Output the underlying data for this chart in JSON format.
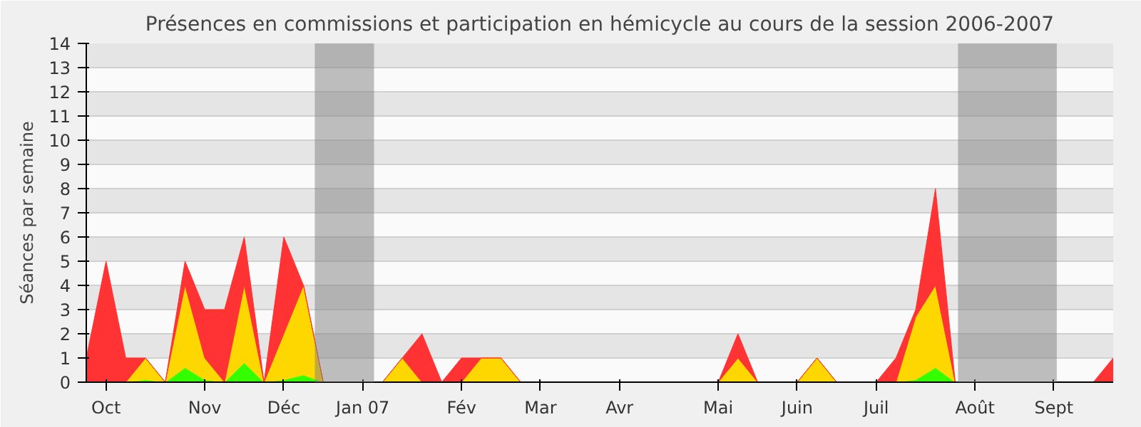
{
  "chart_data": {
    "type": "area",
    "stacked": true,
    "title": "Présences en commissions et participation en hémicycle au cours de la session 2006-2007",
    "ylabel": "Séances par semaine",
    "x": [
      "2006-09-25",
      "2006-10-02",
      "2006-10-09",
      "2006-10-16",
      "2006-10-23",
      "2006-10-30",
      "2006-11-06",
      "2006-11-13",
      "2006-11-20",
      "2006-11-27",
      "2006-12-04",
      "2006-12-11",
      "2006-12-18",
      "2006-12-25",
      "2007-01-01",
      "2007-01-08",
      "2007-01-15",
      "2007-01-22",
      "2007-01-29",
      "2007-02-05",
      "2007-02-12",
      "2007-02-19",
      "2007-02-26",
      "2007-03-05",
      "2007-03-12",
      "2007-03-19",
      "2007-03-26",
      "2007-04-02",
      "2007-04-09",
      "2007-04-16",
      "2007-04-23",
      "2007-04-30",
      "2007-05-07",
      "2007-05-14",
      "2007-05-21",
      "2007-05-28",
      "2007-06-04",
      "2007-06-11",
      "2007-06-18",
      "2007-06-25",
      "2007-07-02",
      "2007-07-09",
      "2007-07-16",
      "2007-07-23",
      "2007-07-30",
      "2007-08-06",
      "2007-08-13",
      "2007-08-20",
      "2007-08-27",
      "2007-09-03",
      "2007-09-10",
      "2007-09-17",
      "2007-09-24"
    ],
    "xlim": [
      "2006-09-25",
      "2007-09-24"
    ],
    "xticks": [
      {
        "value": "2006-10-02",
        "label": "Oct"
      },
      {
        "value": "2006-11-06",
        "label": "Nov"
      },
      {
        "value": "2006-12-04",
        "label": "Déc"
      },
      {
        "value": "2007-01-01",
        "label": "Jan 07"
      },
      {
        "value": "2007-02-05",
        "label": "Fév"
      },
      {
        "value": "2007-03-05",
        "label": "Mar"
      },
      {
        "value": "2007-04-02",
        "label": "Avr"
      },
      {
        "value": "2007-05-07",
        "label": "Mai"
      },
      {
        "value": "2007-06-04",
        "label": "Juin"
      },
      {
        "value": "2007-07-02",
        "label": "Juil"
      },
      {
        "value": "2007-08-06",
        "label": "Août"
      },
      {
        "value": "2007-09-03",
        "label": "Sept"
      }
    ],
    "ylim": [
      0,
      14
    ],
    "yticks": [
      0,
      1,
      2,
      3,
      4,
      5,
      6,
      7,
      8,
      9,
      10,
      11,
      12,
      13,
      14
    ],
    "grid": "y",
    "bands": [
      {
        "axis": "x",
        "from": "2006-12-15",
        "to": "2007-01-05",
        "color": "#808080"
      },
      {
        "axis": "x",
        "from": "2007-07-31",
        "to": "2007-09-04",
        "color": "#808080"
      }
    ],
    "series": [
      {
        "color": "#33ff00",
        "values": [
          0,
          0,
          0,
          0.1,
          0,
          0.6,
          0.1,
          0,
          0.8,
          0,
          0.1,
          0.3,
          0,
          0,
          0,
          0,
          0,
          0,
          0,
          0,
          0,
          0,
          0,
          0,
          0,
          0,
          0,
          0,
          0,
          0,
          0,
          0,
          0,
          0,
          0,
          0,
          0,
          0,
          0,
          0,
          0,
          0,
          0.1,
          0.6,
          0,
          0,
          0,
          0,
          0,
          0,
          0,
          0,
          0
        ]
      },
      {
        "color": "#ffd700",
        "values": [
          0,
          0,
          0,
          0.9,
          0,
          3.4,
          0.9,
          0,
          3.2,
          0,
          1.9,
          3.7,
          0,
          0,
          0,
          0,
          1,
          0,
          0,
          0,
          1,
          1,
          0,
          0,
          0,
          0,
          0,
          0,
          0,
          0,
          0,
          0,
          0,
          1,
          0,
          0,
          0,
          1,
          0,
          0,
          0,
          0,
          2.6,
          3.4,
          0,
          0,
          0,
          0,
          0,
          0,
          0,
          0,
          0
        ]
      },
      {
        "color": "#ff3333",
        "values": [
          1,
          5,
          1,
          0,
          0,
          1,
          2,
          3,
          2,
          0,
          4,
          0,
          0,
          0,
          0,
          0,
          0,
          2,
          0,
          1,
          0,
          0,
          0,
          0,
          0,
          0,
          0,
          0,
          0,
          0,
          0,
          0,
          0,
          1,
          0,
          0,
          0,
          0,
          0,
          0,
          0,
          1,
          0.3,
          4,
          0,
          0,
          0,
          0,
          0,
          0,
          0,
          0,
          1
        ]
      }
    ]
  }
}
